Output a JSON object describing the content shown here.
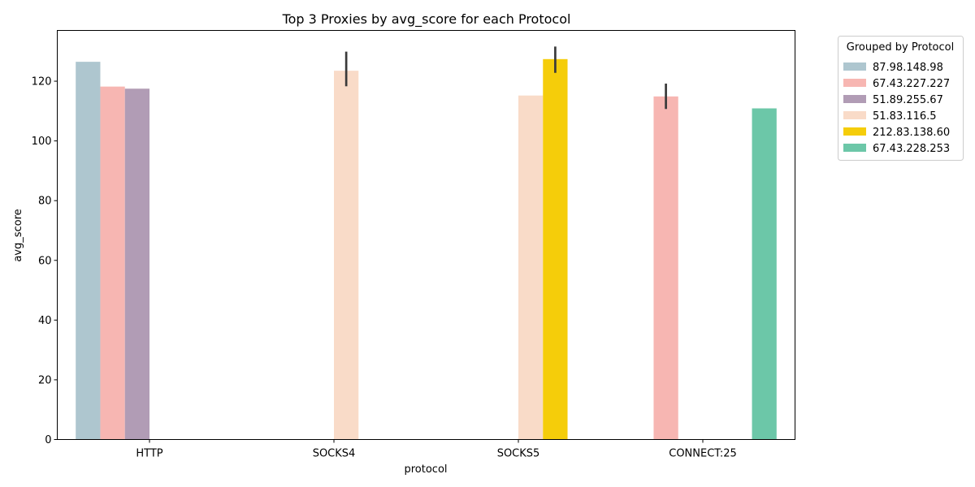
{
  "chart_data": {
    "type": "bar",
    "title": "Top 3 Proxies by avg_score for each Protocol",
    "xlabel": "protocol",
    "ylabel": "avg_score",
    "ylim": [
      0,
      137
    ],
    "yticks": [
      0,
      20,
      40,
      60,
      80,
      100,
      120
    ],
    "grid": false,
    "categories": [
      "HTTP",
      "SOCKS4",
      "SOCKS5",
      "CONNECT:25"
    ],
    "legend": {
      "title": "Grouped by Protocol",
      "placement": "outside-top-right"
    },
    "series": [
      {
        "name": "87.98.148.98",
        "color": "#aec6cf",
        "values": [
          126.5,
          null,
          null,
          null
        ],
        "errors": [
          null,
          null,
          null,
          null
        ]
      },
      {
        "name": "67.43.227.227",
        "color": "#f7b6b2",
        "values": [
          118.2,
          null,
          null,
          114.9
        ],
        "errors": [
          null,
          null,
          null,
          [
            110.7,
            119.2
          ]
        ]
      },
      {
        "name": "51.89.255.67",
        "color": "#b19cb5",
        "values": [
          117.5,
          null,
          null,
          null
        ],
        "errors": [
          null,
          null,
          null,
          null
        ]
      },
      {
        "name": "51.83.116.5",
        "color": "#f9dbc8",
        "values": [
          null,
          123.5,
          115.2,
          null
        ],
        "errors": [
          null,
          [
            118.3,
            129.9
          ],
          null,
          null
        ]
      },
      {
        "name": "212.83.138.60",
        "color": "#f5cd0a",
        "values": [
          null,
          null,
          127.4,
          null
        ],
        "errors": [
          null,
          null,
          [
            122.8,
            131.6
          ],
          null
        ]
      },
      {
        "name": "67.43.228.253",
        "color": "#6cc7a8",
        "values": [
          null,
          null,
          null,
          110.9
        ],
        "errors": [
          null,
          null,
          null,
          null
        ]
      }
    ]
  }
}
